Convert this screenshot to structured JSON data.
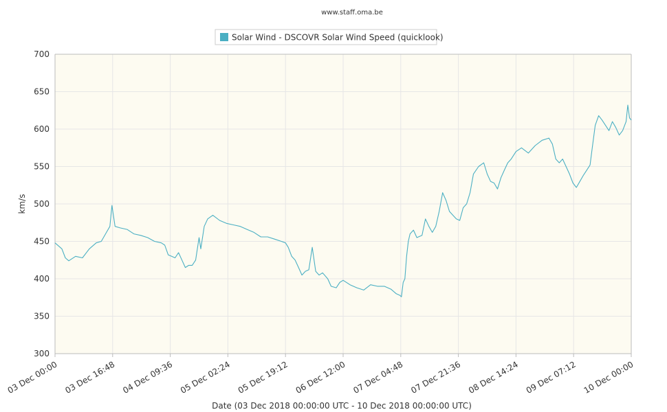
{
  "credit": "www.staff.oma.be",
  "legend": {
    "label": "Solar Wind - DSCOVR Solar Wind Speed (quicklook)"
  },
  "colors": {
    "series": "#4aafc3",
    "plot_bg": "#fdfbf1",
    "grid": "#e6e6e6",
    "axis": "#bbbbbb"
  },
  "chart_data": {
    "type": "line",
    "xlabel": "Date (03 Dec 2018 00:00:00 UTC - 10 Dec 2018 00:00:00 UTC)",
    "ylabel": "km/s",
    "ylim": [
      300,
      700
    ],
    "xlim": [
      "2018-12-03 00:00",
      "2018-12-10 00:00"
    ],
    "y_ticks": [
      300,
      350,
      400,
      450,
      500,
      550,
      600,
      650,
      700
    ],
    "x_tick_labels": [
      "03 Dec 00:00",
      "03 Dec 16:48",
      "04 Dec 09:36",
      "05 Dec 02:24",
      "05 Dec 19:12",
      "06 Dec 12:00",
      "07 Dec 04:48",
      "07 Dec 21:36",
      "08 Dec 14:24",
      "09 Dec 07:12",
      "10 Dec 00:00"
    ],
    "grid": true,
    "legend_position": "top-center",
    "series": [
      {
        "name": "Solar Wind - DSCOVR Solar Wind Speed (quicklook)",
        "points": [
          [
            "2018-12-03 00:00",
            448
          ],
          [
            "2018-12-03 02:00",
            440
          ],
          [
            "2018-12-03 03:00",
            428
          ],
          [
            "2018-12-03 04:00",
            424
          ],
          [
            "2018-12-03 06:00",
            430
          ],
          [
            "2018-12-03 08:00",
            428
          ],
          [
            "2018-12-03 10:00",
            440
          ],
          [
            "2018-12-03 12:00",
            448
          ],
          [
            "2018-12-03 13:30",
            450
          ],
          [
            "2018-12-03 15:00",
            462
          ],
          [
            "2018-12-03 16:00",
            470
          ],
          [
            "2018-12-03 16:36",
            498
          ],
          [
            "2018-12-03 17:30",
            470
          ],
          [
            "2018-12-03 19:00",
            468
          ],
          [
            "2018-12-03 21:00",
            466
          ],
          [
            "2018-12-03 23:00",
            460
          ],
          [
            "2018-12-04 01:00",
            458
          ],
          [
            "2018-12-04 03:00",
            455
          ],
          [
            "2018-12-04 05:00",
            450
          ],
          [
            "2018-12-04 07:00",
            448
          ],
          [
            "2018-12-04 08:00",
            445
          ],
          [
            "2018-12-04 09:00",
            432
          ],
          [
            "2018-12-04 10:00",
            430
          ],
          [
            "2018-12-04 11:00",
            428
          ],
          [
            "2018-12-04 12:00",
            435
          ],
          [
            "2018-12-04 13:00",
            425
          ],
          [
            "2018-12-04 14:00",
            415
          ],
          [
            "2018-12-04 15:00",
            418
          ],
          [
            "2018-12-04 16:00",
            418
          ],
          [
            "2018-12-04 17:00",
            425
          ],
          [
            "2018-12-04 18:00",
            455
          ],
          [
            "2018-12-04 18:30",
            440
          ],
          [
            "2018-12-04 19:30",
            470
          ],
          [
            "2018-12-04 20:30",
            480
          ],
          [
            "2018-12-04 22:00",
            485
          ],
          [
            "2018-12-05 00:00",
            478
          ],
          [
            "2018-12-05 02:00",
            474
          ],
          [
            "2018-12-05 04:00",
            472
          ],
          [
            "2018-12-05 06:00",
            470
          ],
          [
            "2018-12-05 08:00",
            466
          ],
          [
            "2018-12-05 10:00",
            462
          ],
          [
            "2018-12-05 12:00",
            456
          ],
          [
            "2018-12-05 14:00",
            456
          ],
          [
            "2018-12-05 16:00",
            453
          ],
          [
            "2018-12-05 18:00",
            450
          ],
          [
            "2018-12-05 19:12",
            448
          ],
          [
            "2018-12-05 20:00",
            442
          ],
          [
            "2018-12-05 21:00",
            430
          ],
          [
            "2018-12-05 22:00",
            425
          ],
          [
            "2018-12-05 23:00",
            415
          ],
          [
            "2018-12-06 00:00",
            405
          ],
          [
            "2018-12-06 01:00",
            410
          ],
          [
            "2018-12-06 02:00",
            412
          ],
          [
            "2018-12-06 03:00",
            442
          ],
          [
            "2018-12-06 04:00",
            410
          ],
          [
            "2018-12-06 05:00",
            405
          ],
          [
            "2018-12-06 06:00",
            408
          ],
          [
            "2018-12-06 07:30",
            400
          ],
          [
            "2018-12-06 08:30",
            390
          ],
          [
            "2018-12-06 10:00",
            388
          ],
          [
            "2018-12-06 11:00",
            395
          ],
          [
            "2018-12-06 12:00",
            398
          ],
          [
            "2018-12-06 14:00",
            392
          ],
          [
            "2018-12-06 16:00",
            388
          ],
          [
            "2018-12-06 18:00",
            385
          ],
          [
            "2018-12-06 20:00",
            392
          ],
          [
            "2018-12-06 22:00",
            390
          ],
          [
            "2018-12-07 00:00",
            390
          ],
          [
            "2018-12-07 02:00",
            386
          ],
          [
            "2018-12-07 03:30",
            380
          ],
          [
            "2018-12-07 04:30",
            378
          ],
          [
            "2018-12-07 05:00",
            376
          ],
          [
            "2018-12-07 05:30",
            395
          ],
          [
            "2018-12-07 06:00",
            400
          ],
          [
            "2018-12-07 06:30",
            430
          ],
          [
            "2018-12-07 07:00",
            450
          ],
          [
            "2018-12-07 07:30",
            460
          ],
          [
            "2018-12-07 08:30",
            465
          ],
          [
            "2018-12-07 09:30",
            455
          ],
          [
            "2018-12-07 11:00",
            458
          ],
          [
            "2018-12-07 12:00",
            480
          ],
          [
            "2018-12-07 13:00",
            470
          ],
          [
            "2018-12-07 14:00",
            462
          ],
          [
            "2018-12-07 15:00",
            470
          ],
          [
            "2018-12-07 16:00",
            490
          ],
          [
            "2018-12-07 17:00",
            515
          ],
          [
            "2018-12-07 18:00",
            505
          ],
          [
            "2018-12-07 19:00",
            490
          ],
          [
            "2018-12-07 20:00",
            485
          ],
          [
            "2018-12-07 21:00",
            480
          ],
          [
            "2018-12-07 22:00",
            478
          ],
          [
            "2018-12-07 23:00",
            495
          ],
          [
            "2018-12-08 00:00",
            500
          ],
          [
            "2018-12-08 01:00",
            515
          ],
          [
            "2018-12-08 02:00",
            540
          ],
          [
            "2018-12-08 03:30",
            550
          ],
          [
            "2018-12-08 05:00",
            555
          ],
          [
            "2018-12-08 06:00",
            540
          ],
          [
            "2018-12-08 07:00",
            530
          ],
          [
            "2018-12-08 08:00",
            528
          ],
          [
            "2018-12-08 09:00",
            520
          ],
          [
            "2018-12-08 10:00",
            535
          ],
          [
            "2018-12-08 11:00",
            545
          ],
          [
            "2018-12-08 12:00",
            555
          ],
          [
            "2018-12-08 13:00",
            560
          ],
          [
            "2018-12-08 14:24",
            570
          ],
          [
            "2018-12-08 16:00",
            575
          ],
          [
            "2018-12-08 18:00",
            568
          ],
          [
            "2018-12-08 20:00",
            578
          ],
          [
            "2018-12-08 22:00",
            585
          ],
          [
            "2018-12-09 00:00",
            588
          ],
          [
            "2018-12-09 01:00",
            580
          ],
          [
            "2018-12-09 02:00",
            560
          ],
          [
            "2018-12-09 03:00",
            555
          ],
          [
            "2018-12-09 04:00",
            560
          ],
          [
            "2018-12-09 05:00",
            550
          ],
          [
            "2018-12-09 06:00",
            540
          ],
          [
            "2018-12-09 07:00",
            528
          ],
          [
            "2018-12-09 08:00",
            522
          ],
          [
            "2018-12-09 09:00",
            530
          ],
          [
            "2018-12-09 10:00",
            538
          ],
          [
            "2018-12-09 11:00",
            545
          ],
          [
            "2018-12-09 12:00",
            552
          ],
          [
            "2018-12-09 12:30",
            570
          ],
          [
            "2018-12-09 13:30",
            605
          ],
          [
            "2018-12-09 14:30",
            618
          ],
          [
            "2018-12-09 15:30",
            612
          ],
          [
            "2018-12-09 16:30",
            605
          ],
          [
            "2018-12-09 17:30",
            598
          ],
          [
            "2018-12-09 18:30",
            610
          ],
          [
            "2018-12-09 19:30",
            602
          ],
          [
            "2018-12-09 20:30",
            592
          ],
          [
            "2018-12-09 21:30",
            598
          ],
          [
            "2018-12-09 22:30",
            610
          ],
          [
            "2018-12-09 23:00",
            632
          ],
          [
            "2018-12-09 23:30",
            615
          ],
          [
            "2018-12-10 00:00",
            612
          ]
        ]
      }
    ]
  }
}
